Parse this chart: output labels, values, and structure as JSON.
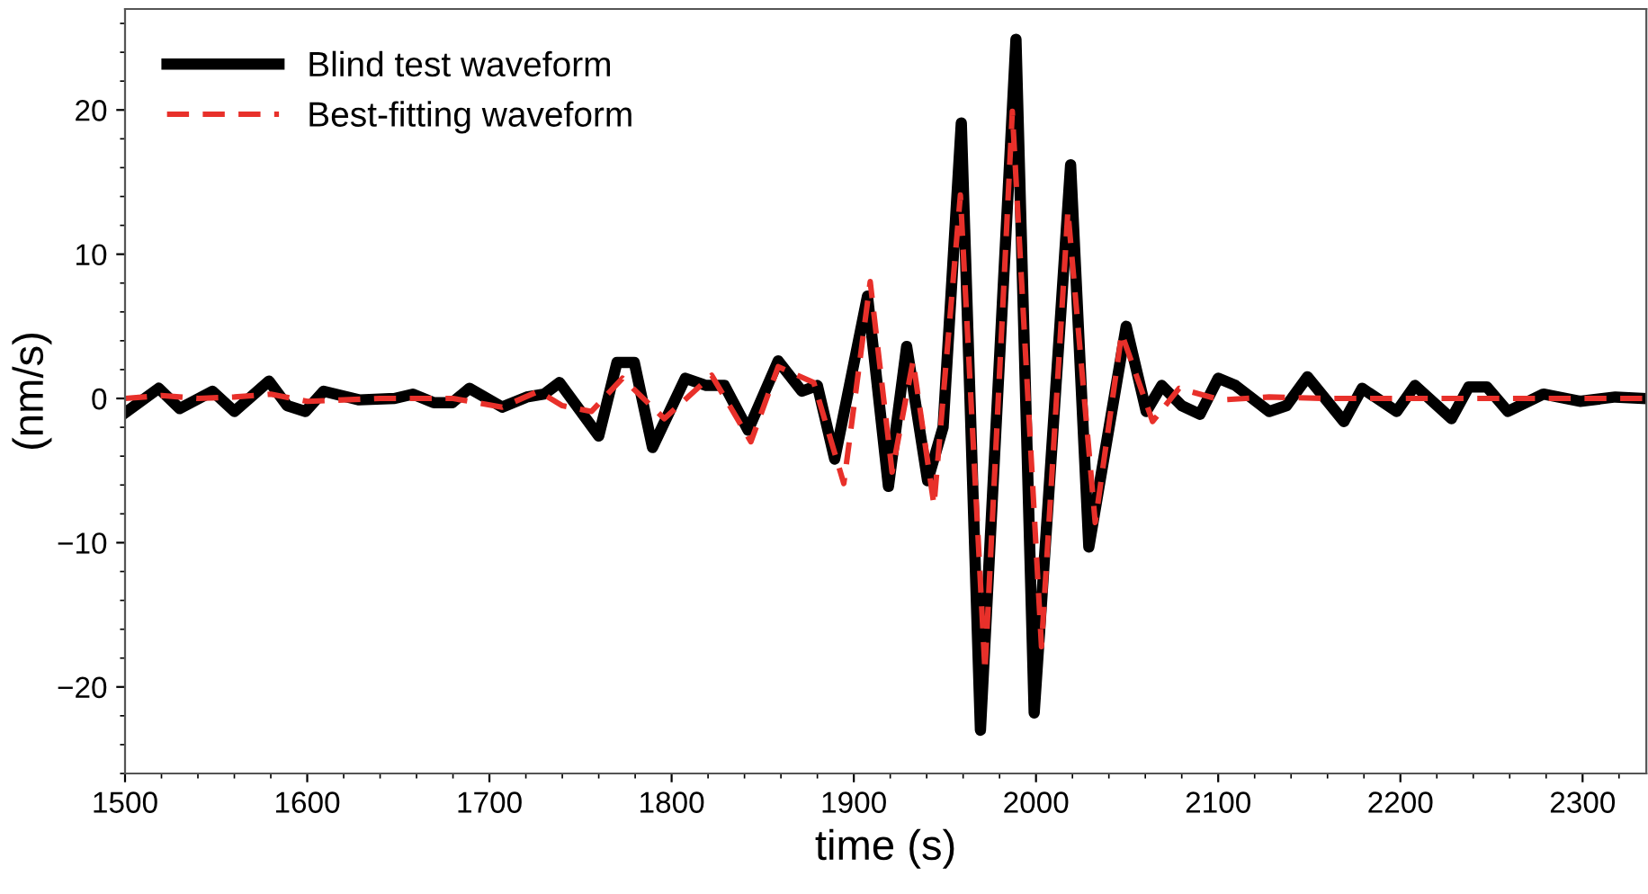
{
  "chart_data": {
    "type": "line",
    "xlabel": "time (s)",
    "ylabel": "(nm/s)",
    "xlim": [
      1500,
      2335
    ],
    "xticks": [
      1500,
      1600,
      1700,
      1800,
      1900,
      2000,
      2100,
      2200,
      2300
    ],
    "ylim": [
      -26,
      27
    ],
    "yticks": [
      -20,
      -10,
      0,
      10,
      20
    ],
    "grid": false,
    "legend": "top left",
    "series": [
      {
        "name": "Blind test waveform",
        "color": "#000000",
        "line_style": "solid",
        "x": [
          1500,
          1518.5,
          1530,
          1548,
          1560,
          1579,
          1589,
          1599,
          1609,
          1628.5,
          1648,
          1658,
          1669.5,
          1679.5,
          1689,
          1707,
          1720.5,
          1730,
          1738.5,
          1760,
          1770,
          1779.5,
          1789.5,
          1807.5,
          1819,
          1829,
          1842,
          1858.5,
          1871.5,
          1880,
          1889.5,
          1907.5,
          1919,
          1929,
          1940.5,
          1949,
          1959,
          1969.5,
          1989,
          1999,
          2019,
          2029,
          2049.5,
          2060.5,
          2069,
          2080,
          2090,
          2100,
          2109.5,
          2128,
          2137.5,
          2149,
          2169,
          2179,
          2198,
          2208,
          2228,
          2237.5,
          2247.5,
          2259,
          2278.5,
          2298.5,
          2318,
          2334
        ],
        "values": [
          -1.0,
          0.7,
          -0.7,
          0.5,
          -0.9,
          1.2,
          -0.5,
          -0.9,
          0.5,
          -0.1,
          0,
          0.3,
          -0.3,
          -0.3,
          0.7,
          -0.6,
          0.1,
          0.3,
          1.1,
          -2.6,
          2.5,
          2.5,
          -3.4,
          1.4,
          0.9,
          0.9,
          -2.2,
          2.6,
          0.5,
          0.9,
          -4.2,
          7.1,
          -6.1,
          3.6,
          -5.7,
          -2.0,
          19.1,
          -23.0,
          24.9,
          -21.8,
          16.2,
          -10.3,
          5.0,
          -0.9,
          0.9,
          -0.5,
          -1.1,
          1.4,
          0.9,
          -0.9,
          -0.5,
          1.5,
          -1.6,
          0.7,
          -0.9,
          0.9,
          -1.4,
          0.8,
          0.8,
          -0.9,
          0.3,
          -0.2,
          0.1,
          0
        ]
      },
      {
        "name": "Best-fitting waveform",
        "color": "#e8302a",
        "line_style": "dashed",
        "x": [
          1500,
          1520,
          1540,
          1560,
          1580,
          1600,
          1640,
          1680,
          1707,
          1727,
          1740,
          1756,
          1773,
          1796,
          1822,
          1843.5,
          1858.5,
          1878,
          1894.5,
          1909,
          1921,
          1932.5,
          1944,
          1958.5,
          1972,
          1987,
          2003,
          2017.5,
          2032.5,
          2047,
          2064,
          2078.5,
          2101.5,
          2128,
          2160,
          2200,
          2250,
          2300,
          2334
        ],
        "values": [
          0,
          0.2,
          0,
          0.1,
          0.3,
          -0.2,
          0,
          0,
          -0.6,
          0.5,
          -0.5,
          -0.9,
          1.4,
          -1.4,
          1.6,
          -3.0,
          2.2,
          1.1,
          -5.9,
          8.1,
          -5.1,
          2.6,
          -7.4,
          14.1,
          -18.9,
          19.9,
          -17.2,
          13.0,
          -8.6,
          4.5,
          -1.6,
          0.7,
          -0.1,
          0.1,
          0,
          0,
          0,
          0,
          0
        ]
      }
    ]
  }
}
